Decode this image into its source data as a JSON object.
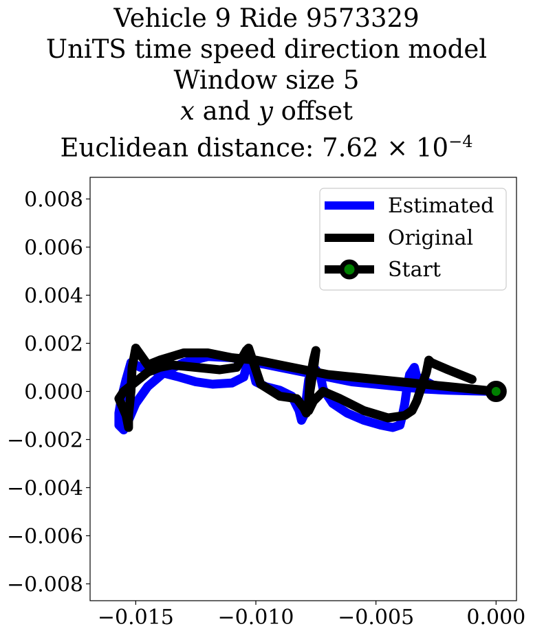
{
  "chart_data": {
    "type": "line",
    "title": {
      "line1": "Vehicle 9 Ride 9573329",
      "line2": "UniTS time speed direction model",
      "line3": "Window size 5",
      "line4_x": "x",
      "line4_and": " and ",
      "line4_y": "y",
      "line4_rest": " offset",
      "line5_prefix": "Euclidean distance: ",
      "line5_mantissa": "7.62",
      "line5_times": " × 10",
      "line5_exp": "−4"
    },
    "xlim": [
      -0.0169,
      0.00085
    ],
    "ylim": [
      -0.0087,
      0.0089
    ],
    "xticks": [
      -0.015,
      -0.01,
      -0.005,
      0.0
    ],
    "xtick_labels": [
      "−0.015",
      "−0.010",
      "−0.005",
      "0.000"
    ],
    "yticks": [
      0.008,
      0.006,
      0.004,
      0.002,
      0.0,
      -0.002,
      -0.004,
      -0.006,
      -0.008
    ],
    "ytick_labels": [
      "0.008",
      "0.006",
      "0.004",
      "0.002",
      "0.000",
      "−0.002",
      "−0.004",
      "−0.006",
      "−0.008"
    ],
    "grid": false,
    "legend_position": "top-right",
    "series": [
      {
        "name": "Estimated",
        "color": "#0000ff",
        "points": [
          [
            0,
            0
          ],
          [
            -0.0012,
            8e-05
          ],
          [
            -0.0025,
            0.0002
          ],
          [
            -0.0033,
            0.0006
          ],
          [
            -0.0034,
            0.001
          ],
          [
            -0.0036,
            0.0007
          ],
          [
            -0.0037,
            0.0002
          ],
          [
            -0.0038,
            -0.0005
          ],
          [
            -0.0039,
            -0.001
          ],
          [
            -0.004,
            -0.0014
          ],
          [
            -0.0043,
            -0.0015
          ],
          [
            -0.0048,
            -0.0014
          ],
          [
            -0.0055,
            -0.0012
          ],
          [
            -0.0062,
            -0.0009
          ],
          [
            -0.0068,
            -0.0005
          ],
          [
            -0.0072,
            0.0001
          ],
          [
            -0.0073,
            0.0006
          ],
          [
            -0.0075,
            0.0009
          ],
          [
            -0.0078,
            0.0005
          ],
          [
            -0.0079,
            -0.0003
          ],
          [
            -0.008,
            -0.001
          ],
          [
            -0.0081,
            -0.0012
          ],
          [
            -0.0082,
            -0.0008
          ],
          [
            -0.0085,
            -0.0002
          ],
          [
            -0.009,
            5e-05
          ],
          [
            -0.0096,
            0.0002
          ],
          [
            -0.01,
            0.0004
          ],
          [
            -0.0101,
            0.0008
          ],
          [
            -0.0102,
            0.0012
          ],
          [
            -0.0104,
            0.001
          ],
          [
            -0.0105,
            0.0006
          ],
          [
            -0.011,
            0.00035
          ],
          [
            -0.0118,
            0.0003
          ],
          [
            -0.0125,
            0.0004
          ],
          [
            -0.0132,
            0.0006
          ],
          [
            -0.014,
            0.0008
          ],
          [
            -0.0148,
            0.001
          ],
          [
            -0.0152,
            0.0012
          ],
          [
            -0.0154,
            0.0005
          ],
          [
            -0.0156,
            -0.0003
          ],
          [
            -0.0157,
            -0.0009
          ],
          [
            -0.0157,
            -0.0014
          ],
          [
            -0.0155,
            -0.0016
          ],
          [
            -0.0153,
            -0.0012
          ],
          [
            -0.015,
            -0.0005
          ],
          [
            -0.0145,
            0.0002
          ],
          [
            -0.0138,
            0.0008
          ],
          [
            -0.013,
            0.0012
          ],
          [
            -0.012,
            0.00145
          ],
          [
            -0.011,
            0.0014
          ],
          [
            -0.01,
            0.0012
          ],
          [
            -0.009,
            0.001
          ],
          [
            -0.008,
            0.0008
          ],
          [
            -0.007,
            0.0006
          ],
          [
            -0.006,
            0.0004
          ],
          [
            -0.005,
            0.0003
          ],
          [
            -0.004,
            0.0002
          ],
          [
            -0.003,
            0.0001
          ],
          [
            -0.002,
            5e-05
          ],
          [
            -0.001,
            2e-05
          ],
          [
            0,
            0
          ]
        ]
      },
      {
        "name": "Original",
        "color": "#000000",
        "points": [
          [
            0,
            0
          ],
          [
            -0.001,
            0.0001
          ],
          [
            -0.002,
            0.0002
          ],
          [
            -0.003,
            0.0003
          ],
          [
            -0.004,
            0.0004
          ],
          [
            -0.005,
            0.0005
          ],
          [
            -0.006,
            0.0006
          ],
          [
            -0.007,
            0.0007
          ],
          [
            -0.008,
            0.0009
          ],
          [
            -0.009,
            0.0011
          ],
          [
            -0.01,
            0.0013
          ],
          [
            -0.011,
            0.0014
          ],
          [
            -0.012,
            0.0016
          ],
          [
            -0.013,
            0.0016
          ],
          [
            -0.014,
            0.0013
          ],
          [
            -0.0145,
            0.0011
          ],
          [
            -0.015,
            0.0018
          ],
          [
            -0.01515,
            0.001
          ],
          [
            -0.0152,
            0.0
          ],
          [
            -0.0153,
            -0.001
          ],
          [
            -0.0153,
            -0.0015
          ],
          [
            -0.0154,
            -0.001
          ],
          [
            -0.0157,
            -0.0003
          ],
          [
            -0.0155,
            0.0
          ],
          [
            -0.015,
            0.0004
          ],
          [
            -0.0145,
            0.0008
          ],
          [
            -0.014,
            0.001
          ],
          [
            -0.0135,
            0.0011
          ],
          [
            -0.0125,
            0.001
          ],
          [
            -0.0115,
            0.0009
          ],
          [
            -0.0108,
            0.001
          ],
          [
            -0.0104,
            0.0017
          ],
          [
            -0.0103,
            0.0018
          ],
          [
            -0.0101,
            0.0012
          ],
          [
            -0.0098,
            0.0003
          ],
          [
            -0.009,
            -0.0002
          ],
          [
            -0.0083,
            -0.0003
          ],
          [
            -0.008,
            -0.0007
          ],
          [
            -0.0079,
            -0.0009
          ],
          [
            -0.0078,
            -0.0004
          ],
          [
            -0.00775,
            0.0005
          ],
          [
            -0.0076,
            0.0013
          ],
          [
            -0.0075,
            0.0017
          ],
          [
            -0.0076,
            0.0009
          ],
          [
            -0.00775,
            0.0
          ],
          [
            -0.0078,
            -0.0008
          ],
          [
            -0.0076,
            -0.0004
          ],
          [
            -0.0072,
            0.0
          ],
          [
            -0.0065,
            -0.0003
          ],
          [
            -0.0055,
            -0.0008
          ],
          [
            -0.0045,
            -0.0011
          ],
          [
            -0.0038,
            -0.001
          ],
          [
            -0.0035,
            -0.0008
          ],
          [
            -0.0033,
            -0.0004
          ],
          [
            -0.0031,
            0.0002
          ],
          [
            -0.0029,
            0.0008
          ],
          [
            -0.0028,
            0.0013
          ],
          [
            -0.0027,
            0.0012
          ],
          [
            -0.002,
            0.0009
          ],
          [
            -0.001,
            0.0005
          ]
        ]
      }
    ],
    "start": {
      "name": "Start",
      "x": 0,
      "y": 0,
      "edge_color": "#000000",
      "face_color": "#008000"
    }
  }
}
